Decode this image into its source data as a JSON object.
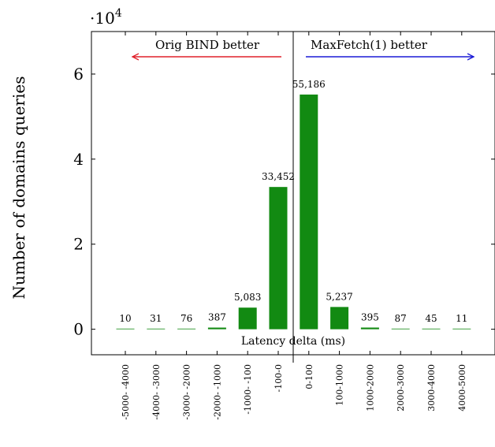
{
  "chart_data": {
    "type": "bar",
    "categories": [
      "-5000- -4000",
      "-4000- -3000",
      "-3000- -2000",
      "-2000- -1000",
      "-1000- -100",
      "-100-0",
      "0-100",
      "100-1000",
      "1000-2000",
      "2000-3000",
      "3000-4000",
      "4000-5000"
    ],
    "values": [
      10,
      31,
      76,
      387,
      5083,
      33452,
      55186,
      5237,
      395,
      87,
      45,
      11
    ],
    "data_labels": [
      "10",
      "31",
      "76",
      "387",
      "5,083",
      "33,452",
      "55,186",
      "5,237",
      "395",
      "87",
      "45",
      "11"
    ],
    "title": "",
    "xlabel": "Latency delta (ms)",
    "ylabel": "Number of domains queries",
    "ylim": [
      -6000,
      70000
    ],
    "yticks": [
      0,
      20000,
      40000,
      60000
    ],
    "ytick_labels": [
      "0",
      "2",
      "4",
      "6"
    ],
    "y_scale_label": "·10",
    "y_scale_exponent": "4",
    "bar_color": "#128a12",
    "grid": false,
    "annotations": {
      "left_text": "Orig BIND better",
      "left_arrow_color": "#e0202a",
      "right_text": "MaxFetch(1) better",
      "right_arrow_color": "#1a1ad6"
    }
  }
}
